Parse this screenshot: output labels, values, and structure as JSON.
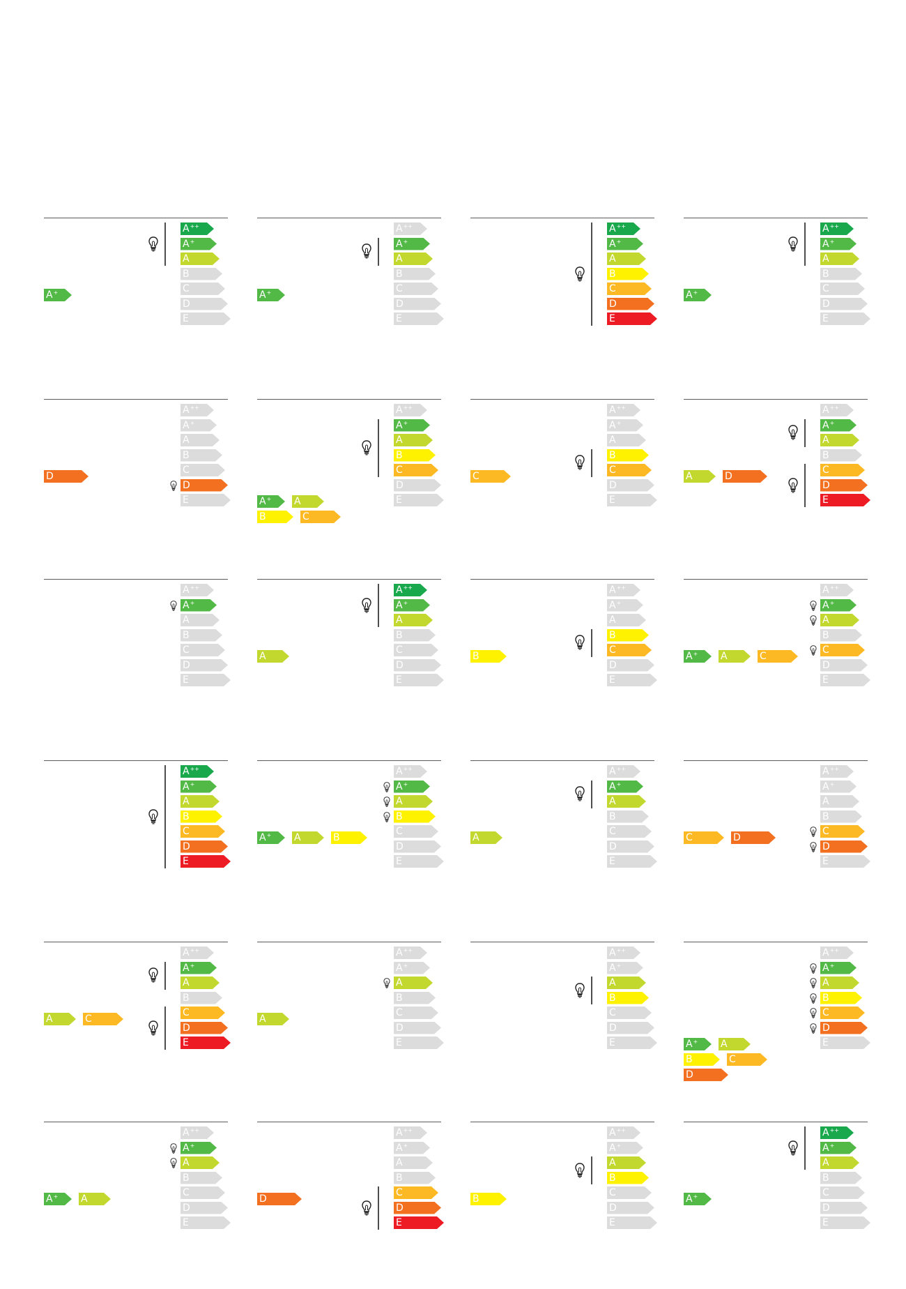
{
  "energy_classes": [
    {
      "letter": "A",
      "sup": "++",
      "color": "#1aa84d"
    },
    {
      "letter": "A",
      "sup": "+",
      "color": "#52b947"
    },
    {
      "letter": "A",
      "sup": "",
      "color": "#c3d82f"
    },
    {
      "letter": "B",
      "sup": "",
      "color": "#fff200"
    },
    {
      "letter": "C",
      "sup": "",
      "color": "#fdb924"
    },
    {
      "letter": "D",
      "sup": "",
      "color": "#f37020"
    },
    {
      "letter": "E",
      "sup": "",
      "color": "#ed1c24"
    }
  ],
  "inactive_color": "#dcdcdc",
  "panels": [
    {
      "active": [
        0,
        1,
        2
      ],
      "bulbs": [
        1
      ],
      "bracket": [
        0,
        2
      ],
      "results": [
        [
          1
        ]
      ]
    },
    {
      "active": [
        1,
        2
      ],
      "bulbs": [
        2
      ],
      "bracket": [
        1,
        2
      ],
      "results": [
        [
          1
        ]
      ]
    },
    {
      "active": [
        0,
        1,
        2,
        3,
        4,
        5,
        6
      ],
      "bulbs": [
        3
      ],
      "bracket": [
        0,
        6
      ],
      "results": []
    },
    {
      "active": [
        0,
        1,
        2
      ],
      "bulbs": [
        1
      ],
      "bracket": [
        0,
        2
      ],
      "results": [
        [
          1
        ]
      ]
    },
    {
      "active": [
        5
      ],
      "bulbs": [
        5
      ],
      "bracket": [],
      "results": [
        [
          5
        ]
      ]
    },
    {
      "active": [
        1,
        2,
        3,
        4
      ],
      "bulbs": [
        2
      ],
      "bracket": [
        1,
        4
      ],
      "results": [
        [
          1,
          2
        ],
        [
          3,
          4
        ]
      ]
    },
    {
      "active": [
        3,
        4
      ],
      "bulbs": [
        3
      ],
      "bracket": [
        3,
        4
      ],
      "results": [
        [
          4
        ]
      ]
    },
    {
      "active": [
        1,
        2,
        4,
        5,
        6
      ],
      "bulbs": [
        1,
        5
      ],
      "bracket": [
        1,
        2,
        4,
        6
      ],
      "results": [
        [
          2,
          5
        ]
      ]
    },
    {
      "active": [
        1
      ],
      "bulbs": [
        1
      ],
      "bracket": [],
      "results": []
    },
    {
      "active": [
        0,
        1,
        2
      ],
      "bulbs": [
        2
      ],
      "bracket": [
        0,
        2
      ],
      "results": [
        [
          2
        ]
      ]
    },
    {
      "active": [
        3,
        4
      ],
      "bulbs": [
        3
      ],
      "bracket": [
        3,
        4
      ],
      "results": [
        [
          3
        ]
      ]
    },
    {
      "active": [
        1,
        2,
        4
      ],
      "bulbs": [
        1,
        2,
        4
      ],
      "bracket": [],
      "results": [
        [
          1,
          2,
          4
        ]
      ]
    },
    {
      "active": [
        0,
        1,
        2,
        3,
        4,
        5,
        6
      ],
      "bulbs": [
        3
      ],
      "bracket": [
        0,
        6
      ],
      "results": []
    },
    {
      "active": [
        1,
        2,
        3
      ],
      "bulbs": [
        1,
        2,
        3
      ],
      "bracket": [],
      "results": [
        [
          1,
          2,
          3
        ]
      ]
    },
    {
      "active": [
        1,
        2
      ],
      "bulbs": [
        1
      ],
      "bracket": [
        1,
        2
      ],
      "results": [
        [
          2
        ]
      ]
    },
    {
      "active": [
        4,
        5
      ],
      "bulbs": [
        4,
        5
      ],
      "bracket": [],
      "results": [
        [
          4,
          5
        ]
      ]
    },
    {
      "active": [
        1,
        2,
        4,
        5,
        6
      ],
      "bulbs": [
        1,
        5
      ],
      "bracket": [
        1,
        2,
        4,
        6
      ],
      "results": [
        [
          2,
          4
        ]
      ]
    },
    {
      "active": [
        2
      ],
      "bulbs": [
        2
      ],
      "bracket": [],
      "results": [
        [
          2
        ]
      ]
    },
    {
      "active": [
        2,
        3
      ],
      "bulbs": [
        2
      ],
      "bracket": [
        2,
        3
      ],
      "results": []
    },
    {
      "active": [
        1,
        2,
        3,
        4,
        5
      ],
      "bulbs": [
        1,
        2,
        3,
        4,
        5
      ],
      "bracket": [],
      "results": [
        [
          1,
          2
        ],
        [
          3,
          4
        ],
        [
          5
        ]
      ]
    },
    {
      "active": [
        1,
        2
      ],
      "bulbs": [
        1,
        2
      ],
      "bracket": [],
      "results": [
        [
          1,
          2
        ]
      ]
    },
    {
      "active": [
        4,
        5,
        6
      ],
      "bulbs": [
        5
      ],
      "bracket": [
        4,
        6
      ],
      "results": [
        [
          5
        ]
      ]
    },
    {
      "active": [
        2,
        3
      ],
      "bulbs": [
        2
      ],
      "bracket": [
        2,
        3
      ],
      "results": [
        [
          3
        ]
      ]
    },
    {
      "active": [
        0,
        1,
        2
      ],
      "bulbs": [
        1
      ],
      "bracket": [
        0,
        2
      ],
      "results": [
        [
          1
        ]
      ]
    }
  ]
}
